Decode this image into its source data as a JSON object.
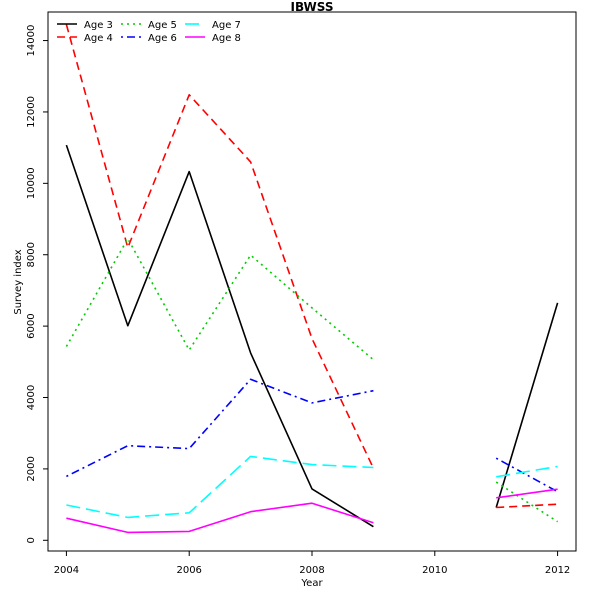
{
  "chart_data": {
    "type": "line",
    "title": "IBWSS",
    "xlabel": "Year",
    "ylabel": "Survey index",
    "xlim": [
      2003.7,
      2012.3
    ],
    "ylim": [
      -300,
      14800
    ],
    "x_ticks": [
      2004,
      2006,
      2008,
      2010,
      2012
    ],
    "y_ticks": [
      0,
      2000,
      4000,
      6000,
      8000,
      10000,
      12000,
      14000
    ],
    "grid": false,
    "legend_position": "top-left",
    "series": [
      {
        "name": "Age 3",
        "color": "#000000",
        "dash": "solid",
        "segments": [
          {
            "x": [
              2004,
              2005,
              2006,
              2007,
              2008,
              2009
            ],
            "y": [
              11070,
              6010,
              10330,
              5250,
              1440,
              380
            ]
          },
          {
            "x": [
              2011,
              2012
            ],
            "y": [
              920,
              6650
            ]
          }
        ]
      },
      {
        "name": "Age 4",
        "color": "#ff0000",
        "dash": "dashed",
        "segments": [
          {
            "x": [
              2004,
              2005,
              2006,
              2007,
              2008,
              2009
            ],
            "y": [
              14450,
              8200,
              12480,
              10600,
              5650,
              2020
            ]
          },
          {
            "x": [
              2011,
              2012
            ],
            "y": [
              920,
              1010
            ]
          }
        ]
      },
      {
        "name": "Age 5",
        "color": "#00cd00",
        "dash": "dotted",
        "segments": [
          {
            "x": [
              2004,
              2005,
              2006,
              2007,
              2008,
              2009
            ],
            "y": [
              5430,
              8450,
              5330,
              7990,
              6510,
              5060
            ]
          },
          {
            "x": [
              2011,
              2012
            ],
            "y": [
              1630,
              520
            ]
          }
        ]
      },
      {
        "name": "Age 6",
        "color": "#0000ff",
        "dash": "dotdash",
        "segments": [
          {
            "x": [
              2004,
              2005,
              2006,
              2007,
              2008,
              2009
            ],
            "y": [
              1790,
              2650,
              2570,
              4510,
              3850,
              4190
            ]
          },
          {
            "x": [
              2011,
              2012
            ],
            "y": [
              2300,
              1360
            ]
          }
        ]
      },
      {
        "name": "Age 7",
        "color": "#00ffff",
        "dash": "longdash",
        "segments": [
          {
            "x": [
              2004,
              2005,
              2006,
              2007,
              2008,
              2009
            ],
            "y": [
              990,
              640,
              770,
              2350,
              2120,
              2040
            ]
          },
          {
            "x": [
              2011,
              2012
            ],
            "y": [
              1780,
              2070
            ]
          }
        ]
      },
      {
        "name": "Age 8",
        "color": "#ff00ff",
        "dash": "solid",
        "segments": [
          {
            "x": [
              2004,
              2005,
              2006,
              2007,
              2008,
              2009
            ],
            "y": [
              620,
              220,
              250,
              800,
              1040,
              490
            ]
          },
          {
            "x": [
              2011,
              2012
            ],
            "y": [
              1190,
              1430
            ]
          }
        ]
      }
    ]
  }
}
